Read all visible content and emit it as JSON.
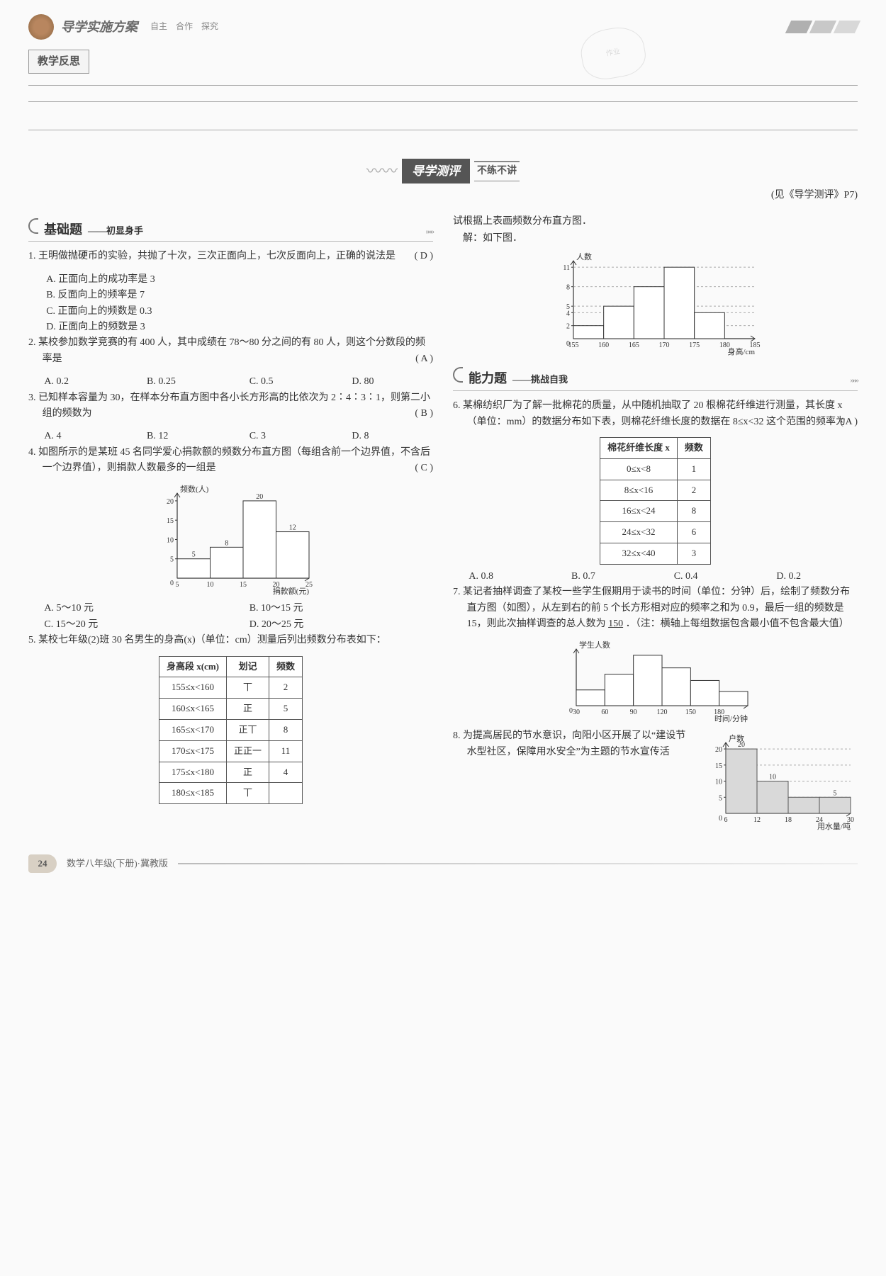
{
  "header": {
    "title": "导学实施方案",
    "subtitle": "自主　合作　探究",
    "stamp": "作业"
  },
  "section_tag": "教学反思",
  "banner": {
    "title": "导学测评",
    "tail": "不练不讲"
  },
  "ref": "(见《导学测评》P7)",
  "left_subhead": {
    "main": "基础题",
    "sub": "——初显身手"
  },
  "right_subhead": {
    "main": "能力题",
    "sub": "——挑战自我"
  },
  "q1": {
    "text": "1. 王明做抛硬币的实验，共抛了十次，三次正面向上，七次反面向上，正确的说法是",
    "ans": "( D )",
    "opts": [
      "A. 正面向上的成功率是 3",
      "B. 反面向上的频率是 7",
      "C. 正面向上的频数是 0.3",
      "D. 正面向上的频数是 3"
    ]
  },
  "q2": {
    "text": "2. 某校参加数学竞赛的有 400 人，其中成绩在 78～80 分之间的有 80 人，则这个分数段的频率是",
    "ans": "( A )",
    "opts": [
      "A. 0.2",
      "B. 0.25",
      "C. 0.5",
      "D. 80"
    ]
  },
  "q3": {
    "text": "3. 已知样本容量为 30，在样本分布直方图中各小长方形高的比依次为 2∶4∶3∶1，则第二小组的频数为",
    "ans": "( B )",
    "opts": [
      "A. 4",
      "B. 12",
      "C. 3",
      "D. 8"
    ]
  },
  "q4": {
    "text": "4. 如图所示的是某班 45 名同学爱心捐款额的频数分布直方图（每组含前一个边界值，不含后一个边界值），则捐款人数最多的一组是",
    "ans": "( C )",
    "opts": [
      "A. 5～10 元",
      "B. 10～15 元",
      "C. 15～20 元",
      "D. 20～25 元"
    ],
    "chart": {
      "type": "bar",
      "categories": [
        5,
        10,
        15,
        20,
        25
      ],
      "values": [
        5,
        8,
        20,
        12
      ],
      "value_labels": [
        "5",
        "8",
        "20",
        "12"
      ],
      "ylabel": "频数(人)",
      "xlabel": "捐款额(元)",
      "yticks": [
        5,
        10,
        15,
        20
      ],
      "bar_color": "#ffffff",
      "border_color": "#333333",
      "ylim": [
        0,
        22
      ]
    }
  },
  "q5": {
    "text": "5. 某校七年级(2)班 30 名男生的身高(x)（单位：cm）测量后列出频数分布表如下：",
    "table": {
      "columns": [
        "身高段 x(cm)",
        "划记",
        "频数"
      ],
      "rows": [
        [
          "155≤x<160",
          "丅",
          "2"
        ],
        [
          "160≤x<165",
          "正",
          "5"
        ],
        [
          "165≤x<170",
          "正丅",
          "8"
        ],
        [
          "170≤x<175",
          "正正一",
          "11"
        ],
        [
          "175≤x<180",
          "正",
          "4"
        ],
        [
          "180≤x<185",
          "丅",
          ""
        ]
      ]
    }
  },
  "q5r": {
    "text": "试根据上表画频数分布直方图．",
    "sol_label": "解：如下图．",
    "chart": {
      "type": "bar",
      "categories": [
        155,
        160,
        165,
        170,
        175,
        180,
        185
      ],
      "values": [
        2,
        5,
        8,
        11,
        4,
        0
      ],
      "ylabel": "人数",
      "xlabel": "身高/cm",
      "yticks": [
        2,
        4,
        5,
        8,
        11
      ],
      "bar_color": "#ffffff",
      "border_color": "#333333",
      "ylim": [
        0,
        12
      ]
    }
  },
  "q6": {
    "text": "6. 某棉纺织厂为了解一批棉花的质量，从中随机抽取了 20 根棉花纤维进行测量，其长度 x（单位：mm）的数据分布如下表，则棉花纤维长度的数据在 8≤x<32 这个范围的频率为",
    "ans": "( A )",
    "table": {
      "columns": [
        "棉花纤维长度 x",
        "频数"
      ],
      "rows": [
        [
          "0≤x<8",
          "1"
        ],
        [
          "8≤x<16",
          "2"
        ],
        [
          "16≤x<24",
          "8"
        ],
        [
          "24≤x<32",
          "6"
        ],
        [
          "32≤x<40",
          "3"
        ]
      ]
    },
    "opts": [
      "A. 0.8",
      "B. 0.7",
      "C. 0.4",
      "D. 0.2"
    ]
  },
  "q7": {
    "text": "7. 某记者抽样调查了某校一些学生假期用于读书的时间（单位：分钟）后，绘制了频数分布直方图（如图），从左到右的前 5 个长方形相对应的频率之和为 0.9，最后一组的频数是 15，则此次抽样调查的总人数为",
    "blank": "150",
    "tail": "．（注：横轴上每组数据包含最小值不包含最大值）",
    "chart": {
      "type": "bar",
      "categories": [
        30,
        60,
        90,
        120,
        150,
        180
      ],
      "values": [
        1,
        2,
        3.2,
        2.4,
        1.6,
        0.9
      ],
      "ylabel": "学生人数",
      "xlabel": "时间/分钟",
      "bar_color": "#ffffff",
      "border_color": "#333333",
      "ylim": [
        0,
        3.6
      ]
    }
  },
  "q8": {
    "text": "8. 为提高居民的节水意识，向阳小区开展了以“建设节水型社区，保障用水安全”为主题的节水宣传活",
    "chart": {
      "type": "bar",
      "categories": [
        6,
        12,
        18,
        24,
        30
      ],
      "values": [
        20,
        10,
        5,
        5
      ],
      "value_labels": [
        "20",
        "10",
        "",
        "5"
      ],
      "ylabel": "户数",
      "xlabel": "用水量/吨",
      "yticks": [
        5,
        10,
        15,
        20
      ],
      "bar_color": "#d9d9d9",
      "border_color": "#555555",
      "ylim": [
        0,
        22
      ]
    }
  },
  "footer": {
    "page": "24",
    "title": "数学八年级(下册)·冀教版"
  }
}
